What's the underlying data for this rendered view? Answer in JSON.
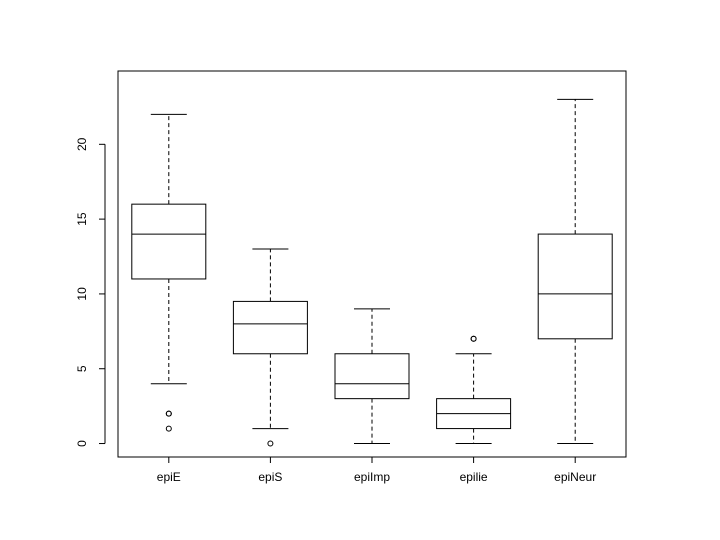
{
  "chart_data": {
    "type": "boxplot",
    "title": "",
    "xlabel": "",
    "ylabel": "",
    "ylim": [
      -0.9,
      24.9
    ],
    "y_ticks": [
      0,
      5,
      10,
      15,
      20
    ],
    "y_tick_labels": [
      "0",
      "5",
      "10",
      "15",
      "20"
    ],
    "grid": false,
    "legend": "none",
    "categories": [
      "epiE",
      "epiS",
      "epiImp",
      "epilie",
      "epiNeur"
    ],
    "boxes": [
      {
        "name": "epiE",
        "whisker_low": 4,
        "q1": 11,
        "median": 14,
        "q3": 16,
        "whisker_high": 22,
        "outliers": [
          2,
          2,
          1
        ]
      },
      {
        "name": "epiS",
        "whisker_low": 1,
        "q1": 6,
        "median": 8,
        "q3": 9.5,
        "whisker_high": 13,
        "outliers": [
          0
        ]
      },
      {
        "name": "epiImp",
        "whisker_low": 0,
        "q1": 3,
        "median": 4,
        "q3": 6,
        "whisker_high": 9,
        "outliers": []
      },
      {
        "name": "epilie",
        "whisker_low": 0,
        "q1": 1,
        "median": 2,
        "q3": 3,
        "whisker_high": 6,
        "outliers": [
          7,
          7
        ]
      },
      {
        "name": "epiNeur",
        "whisker_low": 0,
        "q1": 7,
        "median": 10,
        "q3": 14,
        "whisker_high": 23,
        "outliers": []
      }
    ]
  }
}
